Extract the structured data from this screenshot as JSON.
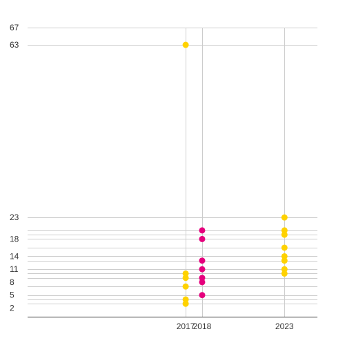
{
  "chart_data": {
    "type": "scatter",
    "title": "",
    "xlabel": "",
    "ylabel": "",
    "x_ticks": [
      2017,
      2018,
      2023
    ],
    "y_ticks": [
      2,
      5,
      8,
      11,
      14,
      18,
      23,
      63,
      67
    ],
    "y_gridlines": [
      3,
      4,
      5,
      7,
      9,
      10,
      11,
      13,
      14,
      16,
      18,
      19,
      20,
      23,
      63,
      67
    ],
    "xlim": [
      2007.4,
      2025
    ],
    "ylim": [
      0,
      67
    ],
    "grid": true,
    "series": [
      {
        "color": "#FFD200",
        "points": [
          {
            "x": 2017,
            "y": 63
          },
          {
            "x": 2017,
            "y": 10
          },
          {
            "x": 2017,
            "y": 9
          },
          {
            "x": 2017,
            "y": 7
          },
          {
            "x": 2017,
            "y": 4
          },
          {
            "x": 2017,
            "y": 3
          },
          {
            "x": 2023,
            "y": 23
          },
          {
            "x": 2023,
            "y": 20
          },
          {
            "x": 2023,
            "y": 19
          },
          {
            "x": 2023,
            "y": 16
          },
          {
            "x": 2023,
            "y": 14
          },
          {
            "x": 2023,
            "y": 13
          },
          {
            "x": 2023,
            "y": 11
          },
          {
            "x": 2023,
            "y": 10
          }
        ]
      },
      {
        "color": "#E5007D",
        "points": [
          {
            "x": 2018,
            "y": 20
          },
          {
            "x": 2018,
            "y": 18
          },
          {
            "x": 2018,
            "y": 13
          },
          {
            "x": 2018,
            "y": 11
          },
          {
            "x": 2018,
            "y": 9
          },
          {
            "x": 2018,
            "y": 8
          },
          {
            "x": 2018,
            "y": 5
          }
        ]
      }
    ]
  }
}
